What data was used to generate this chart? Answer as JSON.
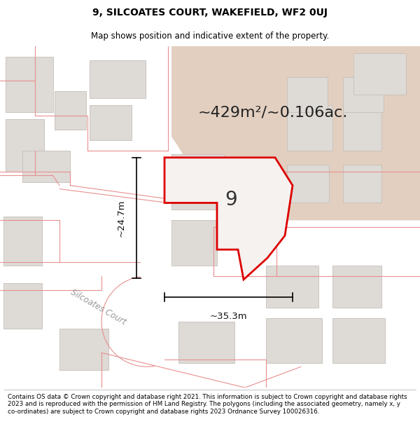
{
  "title_line1": "9, SILCOATES COURT, WAKEFIELD, WF2 0UJ",
  "title_line2": "Map shows position and indicative extent of the property.",
  "footer_text": "Contains OS data © Crown copyright and database right 2021. This information is subject to Crown copyright and database rights 2023 and is reproduced with the permission of HM Land Registry. The polygons (including the associated geometry, namely x, y co-ordinates) are subject to Crown copyright and database rights 2023 Ordnance Survey 100026316.",
  "area_label": "~429m²/~0.106ac.",
  "width_label": "~35.3m",
  "height_label": "~24.7m",
  "plot_number": "9",
  "road_label": "Silcoates Court",
  "map_bg": "#ede8e4",
  "tan_color": "#e2cfc0",
  "building_fill": "#dedad5",
  "building_edge": "#c5bfba",
  "pink": "#e89090",
  "red_poly_fill": "#f5f2f0",
  "red_poly_edge": "#dd0000",
  "title_fontsize": 10,
  "subtitle_fontsize": 8.5,
  "footer_fontsize": 6.3,
  "area_fontsize": 16,
  "dim_fontsize": 9.5,
  "road_fontsize": 8.5
}
